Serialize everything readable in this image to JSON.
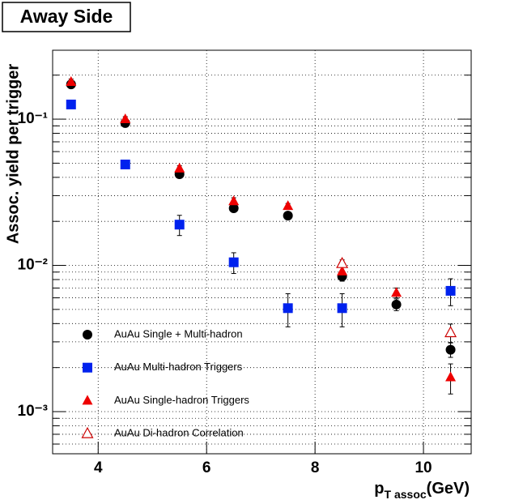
{
  "chart_data": {
    "type": "scatter",
    "title": "Away Side",
    "x_label": "p",
    "x_label_sub": "T assoc",
    "x_label_unit": "(GeV)",
    "y_label": "Assoc. yield per trigger",
    "xlim": [
      3.16,
      10.88
    ],
    "xticks": [
      4,
      6,
      8,
      10
    ],
    "ylim": [
      0.000515,
      0.296
    ],
    "log_y": true,
    "yticks": [
      {
        "value": 0.001,
        "label": "10⁻³"
      },
      {
        "value": 0.01,
        "label": "10⁻²"
      },
      {
        "value": 0.1,
        "label": "10⁻¹"
      }
    ],
    "yminorticks": [
      0.0006,
      0.0007,
      0.0008,
      0.0009,
      0.002,
      0.003,
      0.004,
      0.005,
      0.006,
      0.007,
      0.008,
      0.009,
      0.02,
      0.03,
      0.04,
      0.05,
      0.06,
      0.07,
      0.08,
      0.09,
      0.2
    ],
    "grid": true,
    "legend": "lower left",
    "series": [
      {
        "name": "AuAu Single + Multi-hadron",
        "marker": "circle",
        "color": "#000000",
        "x": [
          3.5,
          4.5,
          5.5,
          6.5,
          7.5,
          8.5,
          9.5,
          10.5
        ],
        "values": [
          0.173,
          0.094,
          0.042,
          0.0246,
          0.0219,
          0.0084,
          0.0054,
          0.00265
        ],
        "errors": [
          0.008,
          0.004,
          0.002,
          0.001,
          0.001,
          0.0006,
          0.0005,
          0.0003
        ]
      },
      {
        "name": "AuAu Multi-hadron Triggers",
        "marker": "square",
        "color": "#0022ee",
        "x": [
          3.5,
          4.5,
          5.5,
          6.5,
          7.5,
          8.5,
          10.5
        ],
        "values": [
          0.126,
          0.049,
          0.019,
          0.0105,
          0.0051,
          0.0051,
          0.0067
        ],
        "errors": [
          0.005,
          0.002,
          0.003,
          0.0017,
          0.0013,
          0.0013,
          0.0014
        ]
      },
      {
        "name": "AuAu Single-hadron Triggers",
        "marker": "triangle",
        "color": "#ee0000",
        "x": [
          3.5,
          4.5,
          5.5,
          6.5,
          7.5,
          8.5,
          9.5,
          10.5
        ],
        "values": [
          0.18,
          0.1,
          0.046,
          0.0275,
          0.0255,
          0.0091,
          0.0065,
          0.00172
        ],
        "errors": [
          0.008,
          0.004,
          0.002,
          0.0015,
          0.001,
          0.0006,
          0.0005,
          0.0004
        ]
      },
      {
        "name": "AuAu Di-hadron Correlation",
        "marker": "open-triangle",
        "color": "#cc0000",
        "x": [
          8.5,
          10.5
        ],
        "values": [
          0.0103,
          0.00347
        ],
        "errors": [
          0.0006,
          0.0005
        ]
      }
    ]
  }
}
